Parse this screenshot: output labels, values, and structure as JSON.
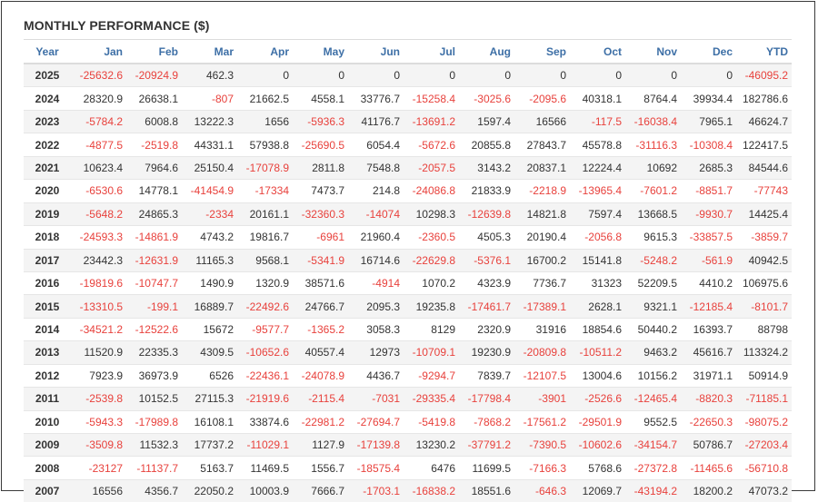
{
  "title": "MONTHLY PERFORMANCE ($)",
  "negative_color": "#e8413c",
  "header_color": "#3d6fa6",
  "columns": [
    "Year",
    "Jan",
    "Feb",
    "Mar",
    "Apr",
    "May",
    "Jun",
    "Jul",
    "Aug",
    "Sep",
    "Oct",
    "Nov",
    "Dec",
    "YTD"
  ],
  "rows": [
    [
      "2025",
      "-25632.6",
      "-20924.9",
      "462.3",
      "0",
      "0",
      "0",
      "0",
      "0",
      "0",
      "0",
      "0",
      "0",
      "-46095.2"
    ],
    [
      "2024",
      "28320.9",
      "26638.1",
      "-807",
      "21662.5",
      "4558.1",
      "33776.7",
      "-15258.4",
      "-3025.6",
      "-2095.6",
      "40318.1",
      "8764.4",
      "39934.4",
      "182786.6"
    ],
    [
      "2023",
      "-5784.2",
      "6008.8",
      "13222.3",
      "1656",
      "-5936.3",
      "41176.7",
      "-13691.2",
      "1597.4",
      "16566",
      "-117.5",
      "-16038.4",
      "7965.1",
      "46624.7"
    ],
    [
      "2022",
      "-4877.5",
      "-2519.8",
      "44331.1",
      "57938.8",
      "-25690.5",
      "6054.4",
      "-5672.6",
      "20855.8",
      "27843.7",
      "45578.8",
      "-31116.3",
      "-10308.4",
      "122417.5"
    ],
    [
      "2021",
      "10623.4",
      "7964.6",
      "25150.4",
      "-17078.9",
      "2811.8",
      "7548.8",
      "-2057.5",
      "3143.2",
      "20837.1",
      "12224.4",
      "10692",
      "2685.3",
      "84544.6"
    ],
    [
      "2020",
      "-6530.6",
      "14778.1",
      "-41454.9",
      "-17334",
      "7473.7",
      "214.8",
      "-24086.8",
      "21833.9",
      "-2218.9",
      "-13965.4",
      "-7601.2",
      "-8851.7",
      "-77743"
    ],
    [
      "2019",
      "-5648.2",
      "24865.3",
      "-2334",
      "20161.1",
      "-32360.3",
      "-14074",
      "10298.3",
      "-12639.8",
      "14821.8",
      "7597.4",
      "13668.5",
      "-9930.7",
      "14425.4"
    ],
    [
      "2018",
      "-24593.3",
      "-14861.9",
      "4743.2",
      "19816.7",
      "-6961",
      "21960.4",
      "-2360.5",
      "4505.3",
      "20190.4",
      "-2056.8",
      "9615.3",
      "-33857.5",
      "-3859.7"
    ],
    [
      "2017",
      "23442.3",
      "-12631.9",
      "11165.3",
      "9568.1",
      "-5341.9",
      "16714.6",
      "-22629.8",
      "-5376.1",
      "16700.2",
      "15141.8",
      "-5248.2",
      "-561.9",
      "40942.5"
    ],
    [
      "2016",
      "-19819.6",
      "-10747.7",
      "1490.9",
      "1320.9",
      "38571.6",
      "-4914",
      "1070.2",
      "4323.9",
      "7736.7",
      "31323",
      "52209.5",
      "4410.2",
      "106975.6"
    ],
    [
      "2015",
      "-13310.5",
      "-199.1",
      "16889.7",
      "-22492.6",
      "24766.7",
      "2095.3",
      "19235.8",
      "-17461.7",
      "-17389.1",
      "2628.1",
      "9321.1",
      "-12185.4",
      "-8101.7"
    ],
    [
      "2014",
      "-34521.2",
      "-12522.6",
      "15672",
      "-9577.7",
      "-1365.2",
      "3058.3",
      "8129",
      "2320.9",
      "31916",
      "18854.6",
      "50440.2",
      "16393.7",
      "88798"
    ],
    [
      "2013",
      "11520.9",
      "22335.3",
      "4309.5",
      "-10652.6",
      "40557.4",
      "12973",
      "-10709.1",
      "19230.9",
      "-20809.8",
      "-10511.2",
      "9463.2",
      "45616.7",
      "113324.2"
    ],
    [
      "2012",
      "7923.9",
      "36973.9",
      "6526",
      "-22436.1",
      "-24078.9",
      "4436.7",
      "-9294.7",
      "7839.7",
      "-12107.5",
      "13004.6",
      "10156.2",
      "31971.1",
      "50914.9"
    ],
    [
      "2011",
      "-2539.8",
      "10152.5",
      "27115.3",
      "-21919.6",
      "-2115.4",
      "-7031",
      "-29335.4",
      "-17798.4",
      "-3901",
      "-2526.6",
      "-12465.4",
      "-8820.3",
      "-71185.1"
    ],
    [
      "2010",
      "-5943.3",
      "-17989.8",
      "16108.1",
      "33874.6",
      "-22981.2",
      "-27694.7",
      "-5419.8",
      "-7868.2",
      "-17561.2",
      "-29501.9",
      "9552.5",
      "-22650.3",
      "-98075.2"
    ],
    [
      "2009",
      "-3509.8",
      "11532.3",
      "17737.2",
      "-11029.1",
      "1127.9",
      "-17139.8",
      "13230.2",
      "-37791.2",
      "-7390.5",
      "-10602.6",
      "-34154.7",
      "50786.7",
      "-27203.4"
    ],
    [
      "2008",
      "-23127",
      "-11137.7",
      "5163.7",
      "11469.5",
      "1556.7",
      "-18575.4",
      "6476",
      "11699.5",
      "-7166.3",
      "5768.6",
      "-27372.8",
      "-11465.6",
      "-56710.8"
    ],
    [
      "2007",
      "16556",
      "4356.7",
      "22050.2",
      "10003.9",
      "7666.7",
      "-1703.1",
      "-16838.2",
      "18551.6",
      "-646.3",
      "12069.7",
      "-43194.2",
      "18200.2",
      "47073.2"
    ]
  ]
}
